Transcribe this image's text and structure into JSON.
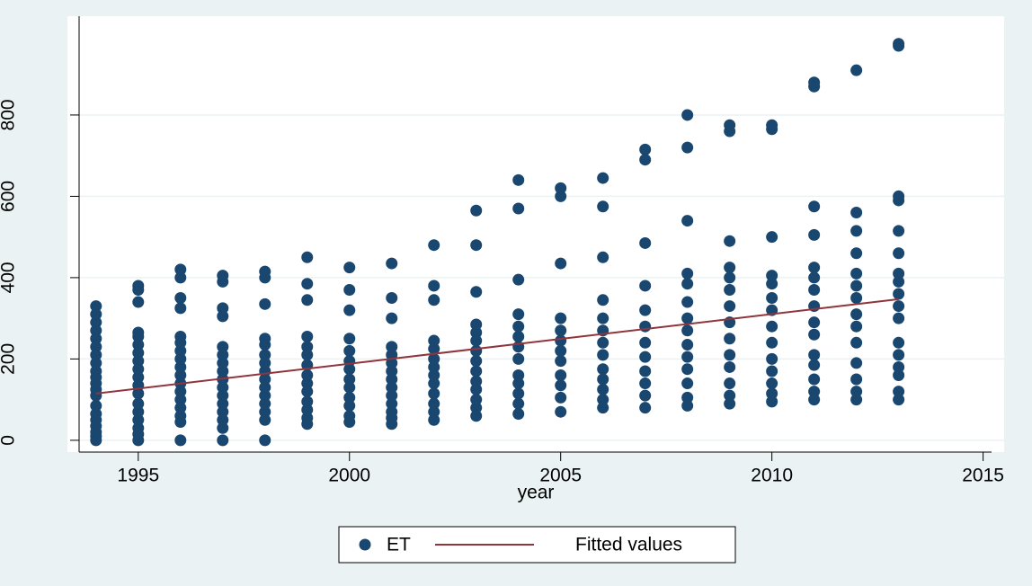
{
  "chart_data": {
    "type": "scatter",
    "x_label": "year",
    "xlim": [
      1993.6,
      2015.2
    ],
    "xticks": [
      1995,
      2000,
      2005,
      2010,
      2015
    ],
    "ylim": [
      -29,
      1043
    ],
    "yticks": [
      0,
      200,
      400,
      600,
      800
    ],
    "grid": true,
    "legend": "bottom",
    "series": [
      {
        "name": "ET",
        "type": "scatter",
        "color": "#1a476f",
        "x": [
          1994,
          1994,
          1994,
          1994,
          1994,
          1994,
          1994,
          1994,
          1994,
          1994,
          1994,
          1994,
          1994,
          1994,
          1994,
          1994,
          1994,
          1994,
          1994,
          1994,
          1995,
          1995,
          1995,
          1995,
          1995,
          1995,
          1995,
          1995,
          1995,
          1995,
          1995,
          1995,
          1995,
          1995,
          1995,
          1995,
          1995,
          1995,
          1996,
          1996,
          1996,
          1996,
          1996,
          1996,
          1996,
          1996,
          1996,
          1996,
          1996,
          1996,
          1996,
          1996,
          1996,
          1996,
          1996,
          1997,
          1997,
          1997,
          1997,
          1997,
          1997,
          1997,
          1997,
          1997,
          1997,
          1997,
          1997,
          1997,
          1997,
          1997,
          1997,
          1998,
          1998,
          1998,
          1998,
          1998,
          1998,
          1998,
          1998,
          1998,
          1998,
          1998,
          1998,
          1998,
          1998,
          1998,
          1999,
          1999,
          1999,
          1999,
          1999,
          1999,
          1999,
          1999,
          1999,
          1999,
          1999,
          1999,
          1999,
          1999,
          2000,
          2000,
          2000,
          2000,
          2000,
          2000,
          2000,
          2000,
          2000,
          2000,
          2000,
          2000,
          2000,
          2001,
          2001,
          2001,
          2001,
          2001,
          2001,
          2001,
          2001,
          2001,
          2001,
          2001,
          2001,
          2001,
          2001,
          2002,
          2002,
          2002,
          2002,
          2002,
          2002,
          2002,
          2002,
          2002,
          2002,
          2002,
          2002,
          2002,
          2003,
          2003,
          2003,
          2003,
          2003,
          2003,
          2003,
          2003,
          2003,
          2003,
          2003,
          2003,
          2003,
          2003,
          2004,
          2004,
          2004,
          2004,
          2004,
          2004,
          2004,
          2004,
          2004,
          2004,
          2004,
          2004,
          2004,
          2005,
          2005,
          2005,
          2005,
          2005,
          2005,
          2005,
          2005,
          2005,
          2005,
          2005,
          2005,
          2006,
          2006,
          2006,
          2006,
          2006,
          2006,
          2006,
          2006,
          2006,
          2006,
          2006,
          2006,
          2006,
          2007,
          2007,
          2007,
          2007,
          2007,
          2007,
          2007,
          2007,
          2007,
          2007,
          2007,
          2007,
          2008,
          2008,
          2008,
          2008,
          2008,
          2008,
          2008,
          2008,
          2008,
          2008,
          2008,
          2008,
          2008,
          2008,
          2009,
          2009,
          2009,
          2009,
          2009,
          2009,
          2009,
          2009,
          2009,
          2009,
          2009,
          2009,
          2009,
          2009,
          2010,
          2010,
          2010,
          2010,
          2010,
          2010,
          2010,
          2010,
          2010,
          2010,
          2010,
          2010,
          2010,
          2010,
          2011,
          2011,
          2011,
          2011,
          2011,
          2011,
          2011,
          2011,
          2011,
          2011,
          2011,
          2011,
          2011,
          2011,
          2011,
          2012,
          2012,
          2012,
          2012,
          2012,
          2012,
          2012,
          2012,
          2012,
          2012,
          2012,
          2012,
          2012,
          2012,
          2013,
          2013,
          2013,
          2013,
          2013,
          2013,
          2013,
          2013,
          2013,
          2013,
          2013,
          2013,
          2013,
          2013,
          2013,
          2013,
          2013
        ],
        "values": [
          0,
          10,
          20,
          35,
          50,
          65,
          85,
          110,
          125,
          140,
          155,
          170,
          190,
          210,
          230,
          250,
          270,
          290,
          310,
          330,
          0,
          15,
          30,
          50,
          70,
          90,
          115,
          135,
          155,
          175,
          195,
          215,
          235,
          255,
          265,
          340,
          370,
          380,
          0,
          45,
          60,
          80,
          100,
          120,
          140,
          160,
          180,
          200,
          220,
          240,
          255,
          325,
          350,
          400,
          420,
          0,
          30,
          50,
          70,
          90,
          110,
          130,
          150,
          170,
          190,
          210,
          230,
          305,
          325,
          390,
          405,
          0,
          50,
          70,
          90,
          110,
          130,
          150,
          170,
          190,
          210,
          235,
          250,
          335,
          400,
          415,
          40,
          55,
          75,
          95,
          120,
          140,
          160,
          185,
          210,
          230,
          255,
          345,
          385,
          450,
          45,
          60,
          85,
          105,
          130,
          150,
          175,
          195,
          220,
          250,
          320,
          370,
          425,
          40,
          55,
          70,
          90,
          110,
          130,
          150,
          170,
          190,
          210,
          230,
          300,
          350,
          435,
          50,
          70,
          90,
          115,
          140,
          160,
          180,
          200,
          225,
          245,
          345,
          380,
          480,
          60,
          80,
          100,
          125,
          145,
          170,
          195,
          220,
          245,
          265,
          285,
          365,
          480,
          565,
          65,
          90,
          115,
          140,
          160,
          200,
          230,
          255,
          280,
          310,
          395,
          570,
          640,
          70,
          105,
          135,
          160,
          195,
          220,
          245,
          270,
          300,
          435,
          600,
          620,
          80,
          100,
          125,
          150,
          175,
          210,
          240,
          270,
          300,
          345,
          450,
          575,
          645,
          80,
          110,
          140,
          170,
          205,
          240,
          280,
          320,
          380,
          485,
          690,
          715,
          85,
          105,
          140,
          175,
          205,
          235,
          270,
          300,
          340,
          385,
          410,
          540,
          720,
          800,
          90,
          110,
          140,
          180,
          210,
          250,
          290,
          330,
          370,
          400,
          425,
          490,
          760,
          775,
          95,
          115,
          140,
          170,
          200,
          240,
          280,
          320,
          350,
          385,
          405,
          500,
          765,
          775,
          100,
          120,
          150,
          185,
          210,
          260,
          290,
          330,
          370,
          400,
          425,
          505,
          575,
          870,
          880,
          100,
          120,
          150,
          190,
          240,
          280,
          310,
          350,
          380,
          410,
          460,
          515,
          560,
          910,
          100,
          120,
          160,
          180,
          210,
          240,
          300,
          330,
          360,
          390,
          410,
          460,
          515,
          590,
          600,
          970,
          975
        ]
      },
      {
        "name": "Fitted values",
        "type": "line",
        "color": "#90353b",
        "x": [
          1994,
          2013
        ],
        "values": [
          115,
          347
        ]
      }
    ]
  }
}
